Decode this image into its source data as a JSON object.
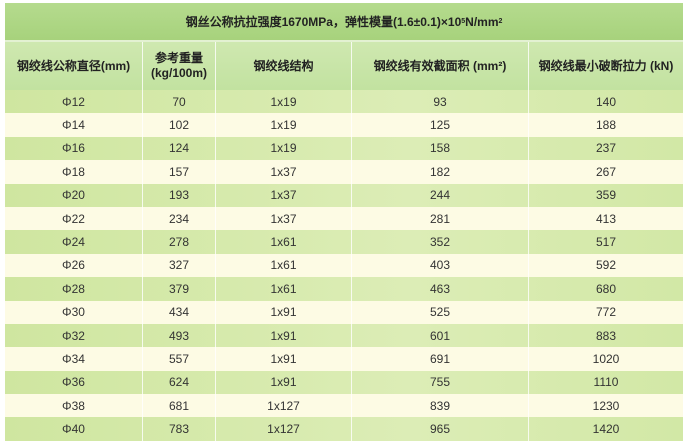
{
  "title": "钢丝公称抗拉强度1670MPa，弹性模量(1.6±0.1)×10",
  "title_sup": "5",
  "title_unit": "N/mm",
  "title_unit_sup": "2",
  "colors": {
    "title_bg": "#a7d27c",
    "header_bg": "#c2e2a0",
    "row_green": "#d3e9a8",
    "row_cream": "#fdfbe4"
  },
  "columns": [
    "钢绞线公称直径(mm)",
    "参考重量\n(kg/100m)",
    "钢绞线结构",
    "钢绞线有效截面积 (mm²)",
    "钢绞线最小破断拉力 (kN)"
  ],
  "rows": [
    [
      "Φ12",
      "70",
      "1x19",
      "93",
      "140"
    ],
    [
      "Φ14",
      "102",
      "1x19",
      "125",
      "188"
    ],
    [
      "Φ16",
      "124",
      "1x19",
      "158",
      "237"
    ],
    [
      "Φ18",
      "157",
      "1x37",
      "182",
      "267"
    ],
    [
      "Φ20",
      "193",
      "1x37",
      "244",
      "359"
    ],
    [
      "Φ22",
      "234",
      "1x37",
      "281",
      "413"
    ],
    [
      "Φ24",
      "278",
      "1x61",
      "352",
      "517"
    ],
    [
      "Φ26",
      "327",
      "1x61",
      "403",
      "592"
    ],
    [
      "Φ28",
      "379",
      "1x61",
      "463",
      "680"
    ],
    [
      "Φ30",
      "434",
      "1x91",
      "525",
      "772"
    ],
    [
      "Φ32",
      "493",
      "1x91",
      "601",
      "883"
    ],
    [
      "Φ34",
      "557",
      "1x91",
      "691",
      "1020"
    ],
    [
      "Φ36",
      "624",
      "1x91",
      "755",
      "1110"
    ],
    [
      "Φ38",
      "681",
      "1x127",
      "839",
      "1230"
    ],
    [
      "Φ40",
      "783",
      "1x127",
      "965",
      "1420"
    ]
  ]
}
